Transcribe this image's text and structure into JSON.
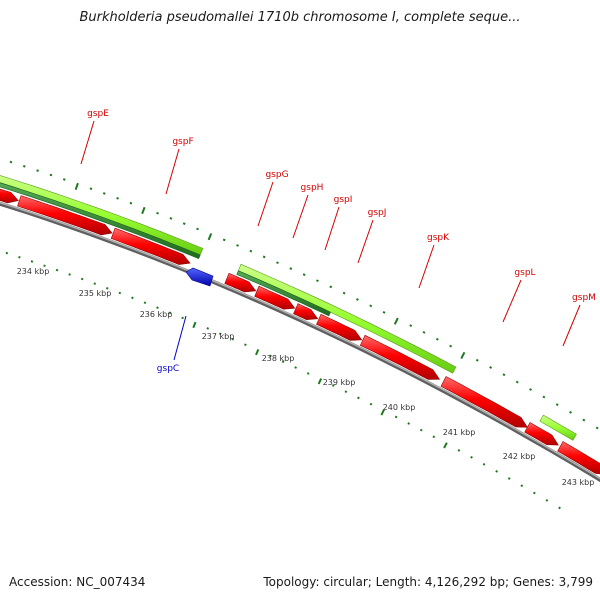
{
  "title": "Burkholderia pseudomallei 1710b chromosome I, complete seque...",
  "footer": {
    "accession": "Accession: NC_007434",
    "stats": "Topology: circular; Length: 4,126,292 bp; Genes: 3,799"
  },
  "colors": {
    "cds": "#ff0000",
    "cds_minus": "#0000ff",
    "feature_light": "#99ff33",
    "feature_dark": "#2e8b2e",
    "ruler_ticks": "#1f7a1f",
    "backbone": "#808080",
    "gene_label": "#d40000",
    "gene_label_minus": "#0000cc"
  },
  "kbp_labels": [
    "234 kbp",
    "235 kbp",
    "236 kbp",
    "237 kbp",
    "238 kbp",
    "239 kbp",
    "240 kbp",
    "241 kbp",
    "242 kbp",
    "243 kbp"
  ],
  "gene_labels": [
    "gspE",
    "gspF",
    "gspG",
    "gspH",
    "gspI",
    "gspJ",
    "gspK",
    "gspL",
    "gspM",
    "gspC"
  ]
}
